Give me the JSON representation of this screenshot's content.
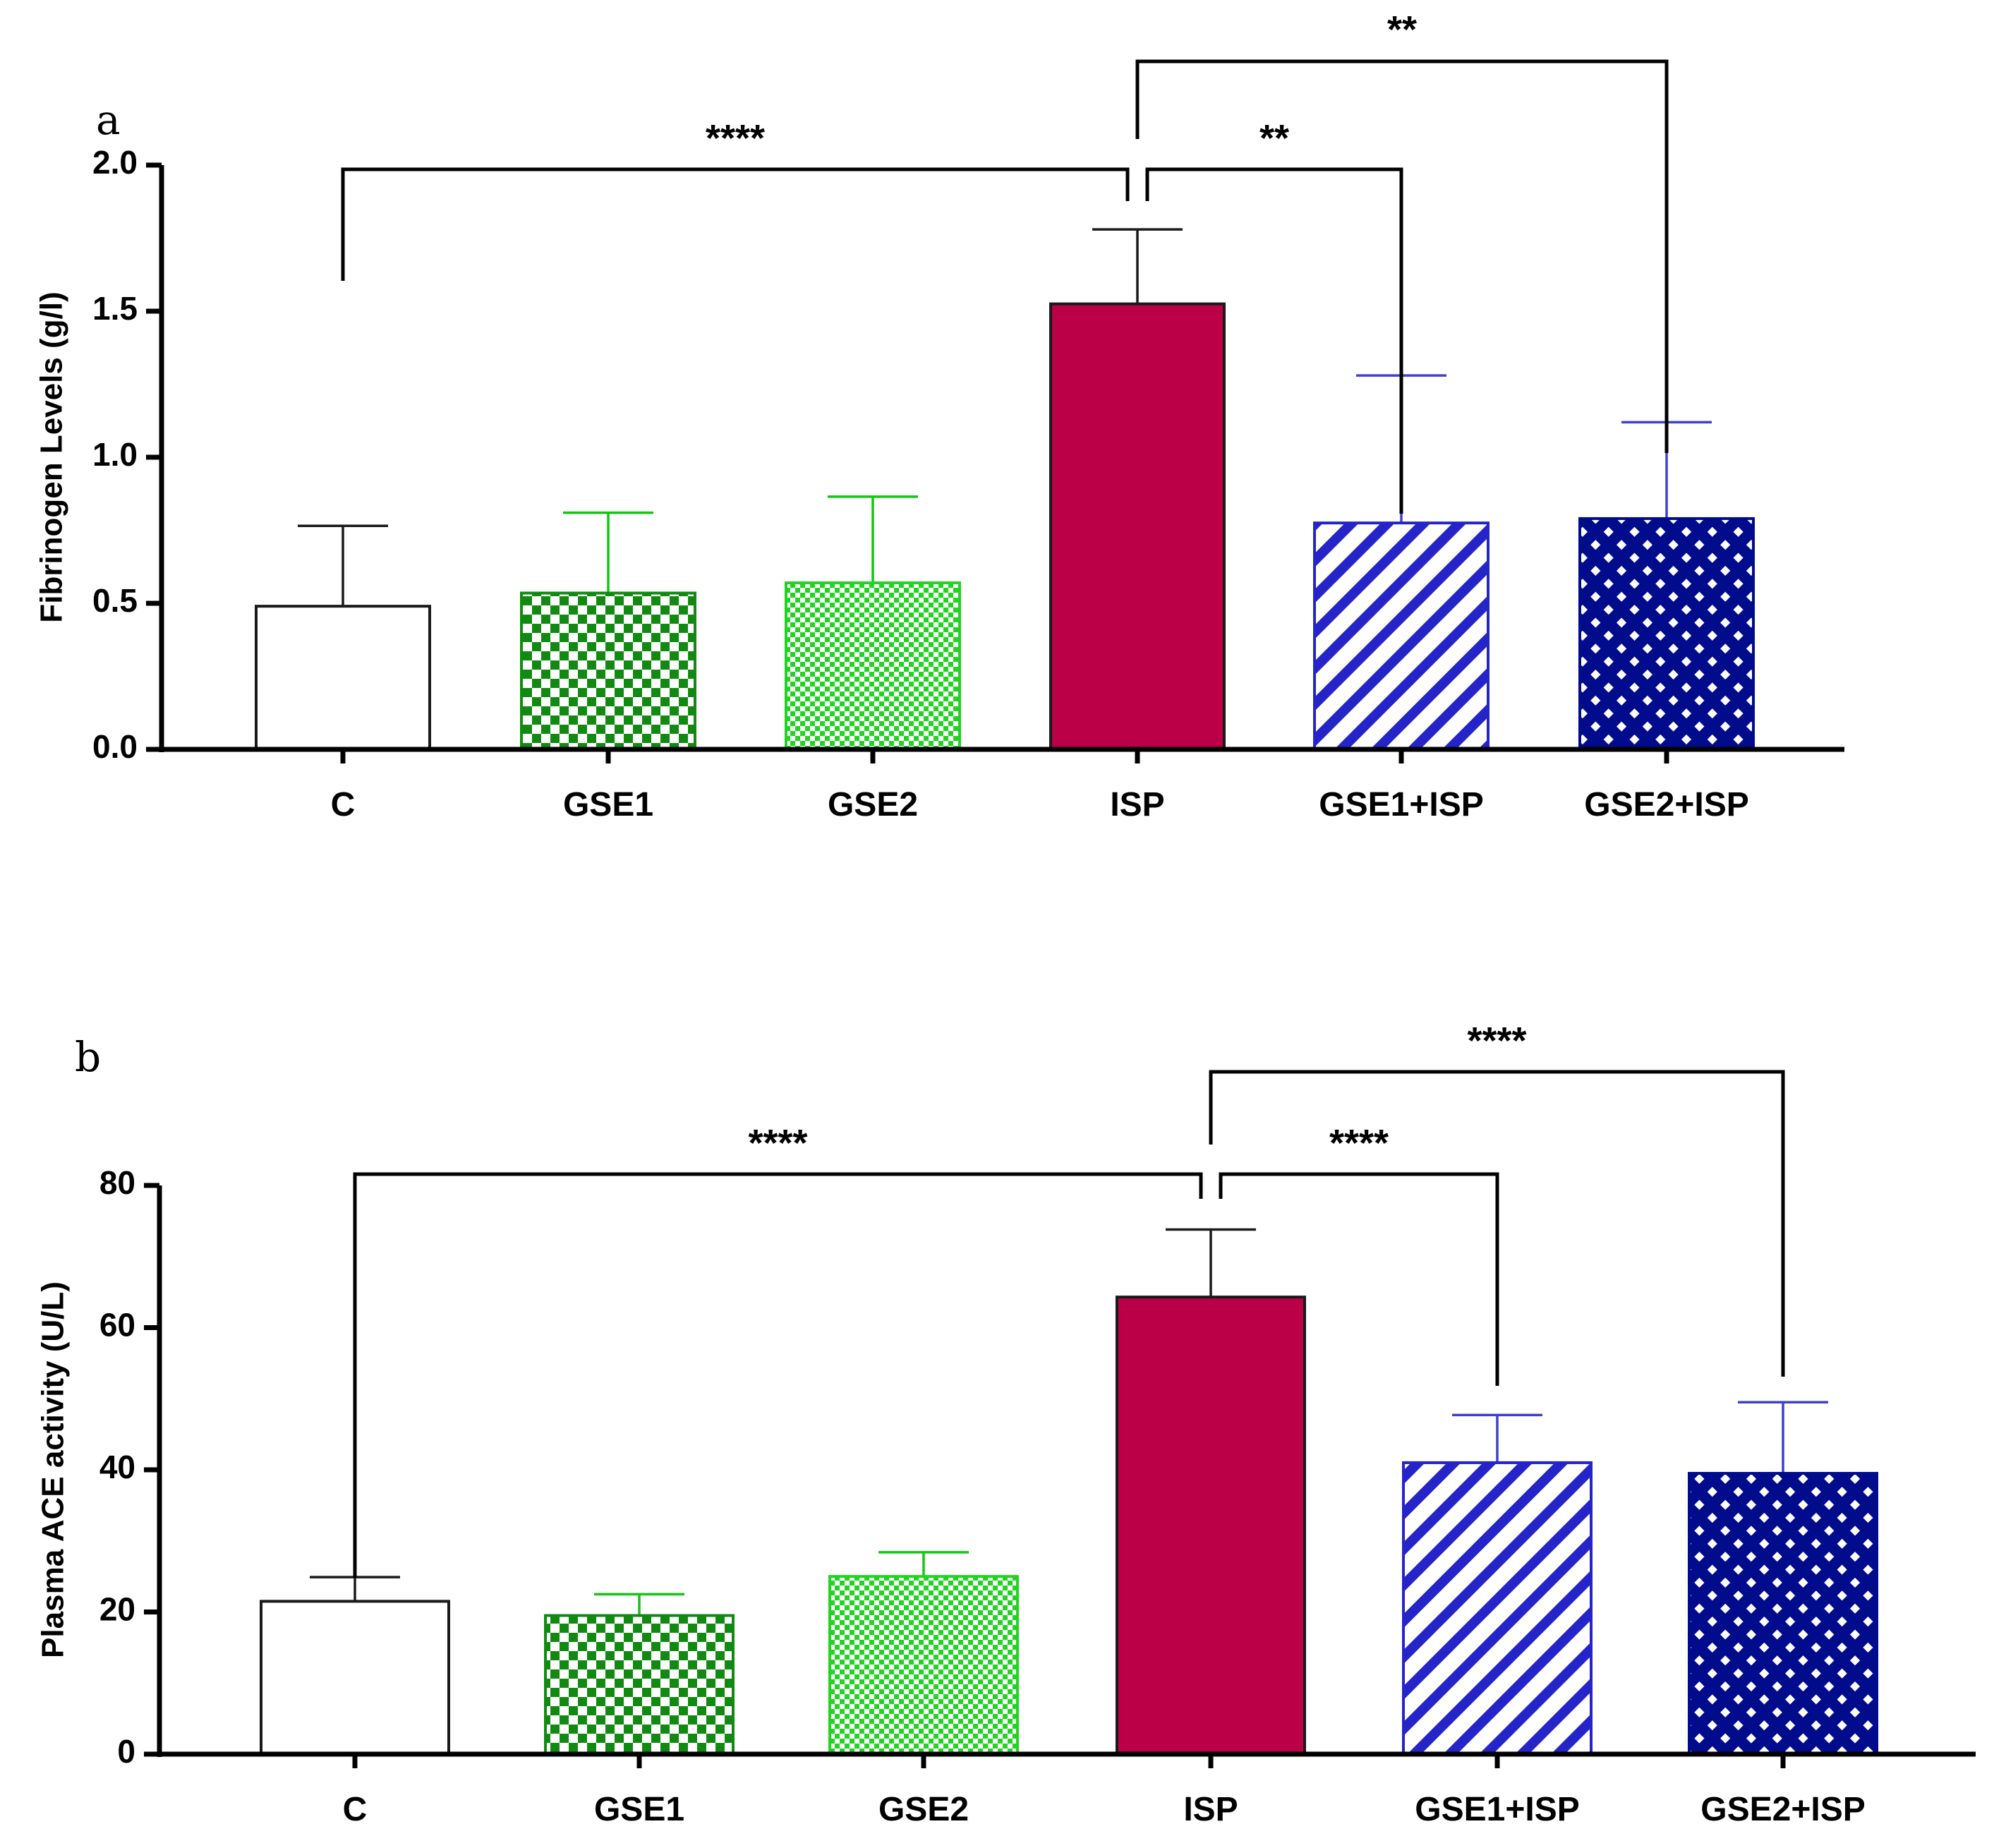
{
  "chart_data": [
    {
      "type": "bar",
      "panel_label": "a",
      "ylabel": "Fibrinogen Levels (g/l)",
      "xlabel": "",
      "ylim": [
        0,
        2.0
      ],
      "yticks": [
        "0.0",
        "0.5",
        "1.0",
        "1.5",
        "2.0"
      ],
      "ytick_values": [
        0,
        0.5,
        1.0,
        1.5,
        2.0
      ],
      "categories": [
        "C",
        "GSE1",
        "GSE2",
        "ISP",
        "GSE1+ISP",
        "GSE2+ISP"
      ],
      "values": [
        0.49,
        0.535,
        0.57,
        1.525,
        0.775,
        0.79
      ],
      "errors": [
        0.275,
        0.275,
        0.295,
        0.255,
        0.505,
        0.33
      ],
      "fills": [
        "none",
        "checker-green",
        "fine-checker-green",
        "solid-crimson",
        "diagonal-blue",
        "crosshatch-navy"
      ],
      "significance": [
        {
          "from": 0,
          "to": 3,
          "label": "****"
        },
        {
          "from": 3,
          "to": 4,
          "label": "**"
        },
        {
          "from": 3,
          "to": 5,
          "label": "**"
        }
      ]
    },
    {
      "type": "bar",
      "panel_label": "b",
      "ylabel": "Plasma ACE activity (U/L)",
      "xlabel": "",
      "ylim": [
        0,
        80
      ],
      "yticks": [
        "0",
        "20",
        "40",
        "60",
        "80"
      ],
      "ytick_values": [
        0,
        20,
        40,
        60,
        80
      ],
      "categories": [
        "C",
        "GSE1",
        "GSE2",
        "ISP",
        "GSE1+ISP",
        "GSE2+ISP"
      ],
      "values": [
        21.5,
        19.5,
        25,
        64.3,
        41,
        39.5
      ],
      "errors": [
        3.4,
        3.0,
        3.4,
        9.5,
        6.7,
        10
      ],
      "fills": [
        "none",
        "checker-green",
        "fine-checker-green",
        "solid-crimson",
        "diagonal-blue",
        "crosshatch-navy"
      ],
      "significance": [
        {
          "from": 0,
          "to": 3,
          "label": "****"
        },
        {
          "from": 3,
          "to": 4,
          "label": "****"
        },
        {
          "from": 3,
          "to": 5,
          "label": "****"
        }
      ]
    }
  ],
  "colors": {
    "green_dark": "#128a12",
    "green_light": "#22d422",
    "crimson": "#bb0047",
    "blue": "#2424c8",
    "navy": "#000c8c",
    "err_green": "#16c416",
    "err_blue": "#4040d0",
    "outline_dark": "#1a1a1a"
  }
}
